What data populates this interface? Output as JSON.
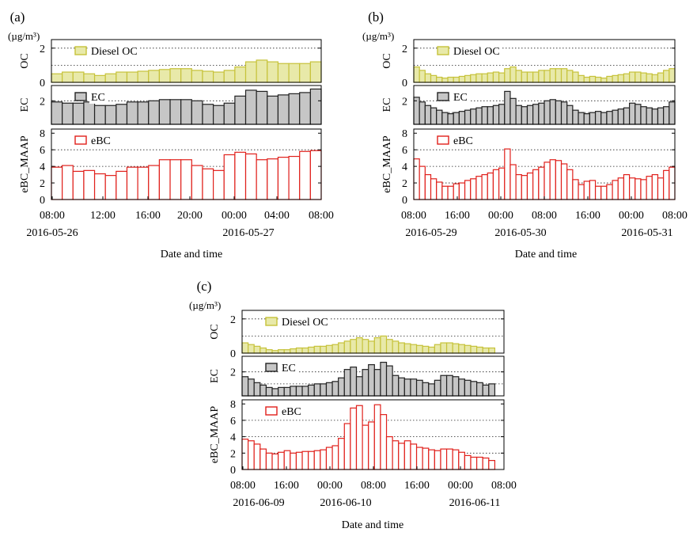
{
  "figure": {
    "xlabel": "Date and time",
    "unit_label": "(µg/m³)",
    "colors": {
      "oc": "#c6c23a",
      "oc_fill": "#e8e9a9",
      "ec": "#222222",
      "ec_fill": "#c6c6c6",
      "ebc": "#e0201b",
      "ebc_fill": "#ffffff"
    }
  },
  "chart_data": [
    {
      "panel_label": "(a)",
      "type": "bar",
      "x_tick_labels": [
        "08:00",
        "12:00",
        "16:00",
        "20:00",
        "00:00",
        "04:00",
        "08:00"
      ],
      "date_labels": [
        "2016-05-26",
        "2016-05-27"
      ],
      "subplots": [
        {
          "ylabel": "OC",
          "legend": "Diesel OC",
          "ylim": [
            0,
            2.5
          ],
          "yticks": [
            0,
            2
          ],
          "gridlines": [
            1,
            2
          ],
          "values": [
            0.5,
            0.6,
            0.6,
            0.5,
            0.4,
            0.5,
            0.6,
            0.6,
            0.65,
            0.7,
            0.75,
            0.8,
            0.8,
            0.7,
            0.65,
            0.6,
            0.7,
            0.9,
            1.2,
            1.3,
            1.2,
            1.1,
            1.1,
            1.1,
            1.2
          ]
        },
        {
          "ylabel": "EC",
          "legend": "EC",
          "ylim": [
            0,
            3.3
          ],
          "yticks": [
            2
          ],
          "gridlines": [
            1,
            2
          ],
          "values": [
            1.9,
            1.8,
            1.8,
            1.9,
            1.6,
            1.6,
            1.7,
            1.9,
            1.9,
            2.0,
            2.1,
            2.1,
            2.1,
            2.0,
            1.7,
            1.6,
            1.8,
            2.4,
            2.9,
            2.8,
            2.4,
            2.5,
            2.6,
            2.7,
            3.0
          ]
        },
        {
          "ylabel": "eBC_MAAP",
          "legend": "eBC",
          "ylim": [
            0,
            8.5
          ],
          "yticks": [
            0,
            2,
            4,
            6,
            8
          ],
          "gridlines": [
            2,
            4,
            6
          ],
          "values": [
            3.9,
            4.1,
            3.4,
            3.5,
            3.1,
            2.9,
            3.4,
            3.9,
            3.9,
            4.1,
            4.8,
            4.8,
            4.8,
            4.1,
            3.7,
            3.5,
            5.4,
            5.7,
            5.5,
            4.8,
            4.9,
            5.1,
            5.2,
            5.8,
            5.9
          ]
        }
      ]
    },
    {
      "panel_label": "(b)",
      "type": "bar",
      "x_tick_labels": [
        "08:00",
        "16:00",
        "00:00",
        "08:00",
        "16:00",
        "00:00",
        "08:00"
      ],
      "date_labels": [
        "2016-05-29",
        "2016-05-30",
        "2016-05-31"
      ],
      "subplots": [
        {
          "ylabel": "OC",
          "legend": "Diesel OC",
          "ylim": [
            0,
            2.5
          ],
          "yticks": [
            0,
            2
          ],
          "gridlines": [
            1,
            2
          ],
          "values": [
            0.9,
            0.7,
            0.5,
            0.4,
            0.3,
            0.25,
            0.3,
            0.3,
            0.35,
            0.4,
            0.45,
            0.5,
            0.5,
            0.55,
            0.6,
            0.55,
            0.8,
            0.9,
            0.7,
            0.6,
            0.6,
            0.6,
            0.7,
            0.7,
            0.8,
            0.8,
            0.8,
            0.7,
            0.6,
            0.4,
            0.3,
            0.35,
            0.3,
            0.25,
            0.35,
            0.4,
            0.45,
            0.5,
            0.6,
            0.6,
            0.55,
            0.5,
            0.45,
            0.55,
            0.7,
            0.8
          ]
        },
        {
          "ylabel": "EC",
          "legend": "EC",
          "ylim": [
            0,
            3.3
          ],
          "yticks": [
            2
          ],
          "gridlines": [
            1,
            2
          ],
          "values": [
            2.3,
            1.9,
            1.6,
            1.4,
            1.2,
            1.0,
            0.9,
            1.0,
            1.1,
            1.2,
            1.3,
            1.4,
            1.5,
            1.5,
            1.6,
            1.7,
            2.8,
            2.2,
            1.6,
            1.5,
            1.6,
            1.7,
            1.8,
            2.0,
            2.1,
            2.0,
            1.9,
            1.6,
            1.2,
            1.0,
            0.9,
            1.0,
            1.1,
            1.0,
            1.1,
            1.2,
            1.3,
            1.4,
            1.8,
            1.7,
            1.5,
            1.4,
            1.3,
            1.4,
            1.5,
            1.9
          ]
        },
        {
          "ylabel": "eBC_MAAP",
          "legend": "eBC",
          "ylim": [
            0,
            8.5
          ],
          "yticks": [
            0,
            2,
            4,
            6,
            8
          ],
          "gridlines": [
            2,
            4,
            6
          ],
          "values": [
            4.9,
            4.0,
            3.0,
            2.5,
            2.1,
            1.6,
            1.6,
            1.9,
            2.0,
            2.3,
            2.5,
            2.8,
            3.0,
            3.2,
            3.6,
            3.8,
            6.1,
            4.2,
            3.0,
            2.9,
            3.2,
            3.6,
            3.9,
            4.5,
            4.8,
            4.7,
            4.3,
            3.6,
            2.4,
            1.8,
            2.2,
            2.3,
            1.6,
            1.6,
            1.8,
            2.3,
            2.6,
            3.0,
            2.6,
            2.5,
            2.4,
            2.8,
            3.0,
            2.6,
            3.5,
            3.9
          ]
        }
      ]
    },
    {
      "panel_label": "(c)",
      "type": "bar",
      "x_tick_labels": [
        "08:00",
        "16:00",
        "00:00",
        "08:00",
        "16:00",
        "00:00",
        "08:00"
      ],
      "date_labels": [
        "2016-06-09",
        "2016-06-10",
        "2016-06-11"
      ],
      "subplots": [
        {
          "ylabel": "OC",
          "legend": "Diesel OC",
          "ylim": [
            0,
            2.5
          ],
          "yticks": [
            0,
            2
          ],
          "gridlines": [
            1,
            2
          ],
          "values": [
            0.6,
            0.5,
            0.4,
            0.3,
            0.2,
            0.15,
            0.2,
            0.2,
            0.25,
            0.3,
            0.3,
            0.35,
            0.4,
            0.4,
            0.45,
            0.5,
            0.6,
            0.7,
            0.8,
            0.9,
            0.8,
            0.7,
            0.9,
            1.0,
            0.8,
            0.7,
            0.6,
            0.55,
            0.5,
            0.45,
            0.4,
            0.35,
            0.5,
            0.6,
            0.6,
            0.55,
            0.5,
            0.45,
            0.4,
            0.35,
            0.3,
            0.3
          ]
        },
        {
          "ylabel": "EC",
          "legend": "EC",
          "ylim": [
            0,
            3.3
          ],
          "yticks": [
            2
          ],
          "gridlines": [
            1,
            2
          ],
          "values": [
            1.6,
            1.4,
            1.1,
            0.9,
            0.7,
            0.6,
            0.7,
            0.7,
            0.8,
            0.8,
            0.8,
            0.9,
            1.0,
            1.0,
            1.1,
            1.2,
            1.5,
            2.2,
            2.4,
            1.6,
            2.2,
            2.6,
            2.2,
            2.8,
            2.5,
            1.7,
            1.5,
            1.4,
            1.4,
            1.3,
            1.1,
            1.0,
            1.3,
            1.7,
            1.7,
            1.6,
            1.4,
            1.3,
            1.2,
            1.1,
            0.9,
            1.0
          ]
        },
        {
          "ylabel": "eBC_MAAP",
          "legend": "eBC",
          "ylim": [
            0,
            8.5
          ],
          "yticks": [
            0,
            2,
            4,
            6,
            8
          ],
          "gridlines": [
            2,
            4,
            6
          ],
          "values": [
            3.7,
            3.5,
            3.1,
            2.5,
            2.0,
            1.9,
            2.1,
            2.3,
            2.0,
            2.1,
            2.2,
            2.2,
            2.3,
            2.4,
            2.7,
            2.9,
            3.8,
            5.6,
            7.5,
            7.8,
            5.4,
            5.8,
            7.9,
            6.7,
            4.0,
            3.5,
            3.2,
            3.5,
            3.1,
            2.7,
            2.6,
            2.4,
            2.3,
            2.5,
            2.5,
            2.4,
            2.1,
            1.7,
            1.5,
            1.5,
            1.4,
            1.1
          ]
        }
      ]
    }
  ]
}
